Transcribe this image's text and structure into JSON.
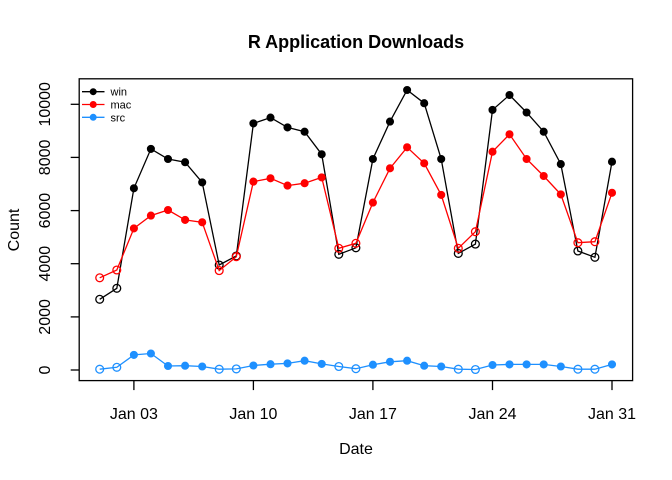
{
  "title": "R Application Downloads",
  "axes": {
    "x_label": "Date",
    "y_label": "Count",
    "x_ticks": [
      {
        "label": "Jan 03",
        "day": 3
      },
      {
        "label": "Jan 10",
        "day": 10
      },
      {
        "label": "Jan 17",
        "day": 17
      },
      {
        "label": "Jan 24",
        "day": 24
      },
      {
        "label": "Jan 31",
        "day": 31
      }
    ],
    "y_ticks": [
      "0",
      "2000",
      "4000",
      "6000",
      "8000",
      "10000"
    ]
  },
  "legend": {
    "position": "topleft",
    "entries": [
      {
        "label": "win",
        "color": "#000000"
      },
      {
        "label": "mac",
        "color": "#ff0000"
      },
      {
        "label": "src",
        "color": "#1e90ff"
      }
    ]
  },
  "chart_data": {
    "type": "line",
    "title": "R Application Downloads",
    "xlabel": "Date",
    "ylabel": "Count",
    "x_unit": "day of January, daily points",
    "x_days": [
      1,
      2,
      3,
      4,
      5,
      6,
      7,
      8,
      9,
      10,
      11,
      12,
      13,
      14,
      15,
      16,
      17,
      18,
      19,
      20,
      21,
      22,
      23,
      24,
      25,
      26,
      27,
      28,
      29,
      30,
      31
    ],
    "x_tick_days": [
      3,
      10,
      17,
      24,
      31
    ],
    "x_tick_labels": [
      "Jan 03",
      "Jan 10",
      "Jan 17",
      "Jan 24",
      "Jan 31"
    ],
    "y_axis_ticks": [
      0,
      2000,
      4000,
      6000,
      8000,
      10000
    ],
    "ylim": [
      0,
      10540
    ],
    "grid": false,
    "legend_position": "topleft",
    "marker_style": "open circles on weekend days, filled circles on weekdays",
    "weekend_days": [
      1,
      2,
      8,
      9,
      15,
      16,
      22,
      23,
      29,
      30
    ],
    "series": [
      {
        "name": "win",
        "color": "#000000",
        "values": [
          2660,
          3075,
          6840,
          8320,
          7940,
          7820,
          7060,
          3950,
          4290,
          9280,
          9500,
          9130,
          8970,
          8120,
          4355,
          4600,
          7940,
          9350,
          10540,
          10040,
          7940,
          4390,
          4740,
          9790,
          10350,
          9690,
          8970,
          7750,
          4480,
          4240,
          7840
        ]
      },
      {
        "name": "mac",
        "color": "#ff0000",
        "values": [
          3470,
          3765,
          5330,
          5810,
          6020,
          5650,
          5560,
          3740,
          4265,
          7090,
          7215,
          6940,
          7030,
          7250,
          4580,
          4770,
          6300,
          7590,
          8380,
          7780,
          6590,
          4580,
          5205,
          8215,
          8870,
          7940,
          7300,
          6610,
          4790,
          4830,
          6670
        ]
      },
      {
        "name": "src",
        "color": "#1e90ff",
        "values": [
          30,
          100,
          570,
          620,
          150,
          160,
          130,
          30,
          40,
          170,
          220,
          250,
          350,
          230,
          130,
          50,
          200,
          310,
          350,
          160,
          130,
          30,
          20,
          190,
          210,
          210,
          210,
          130,
          30,
          30,
          210
        ]
      }
    ]
  }
}
